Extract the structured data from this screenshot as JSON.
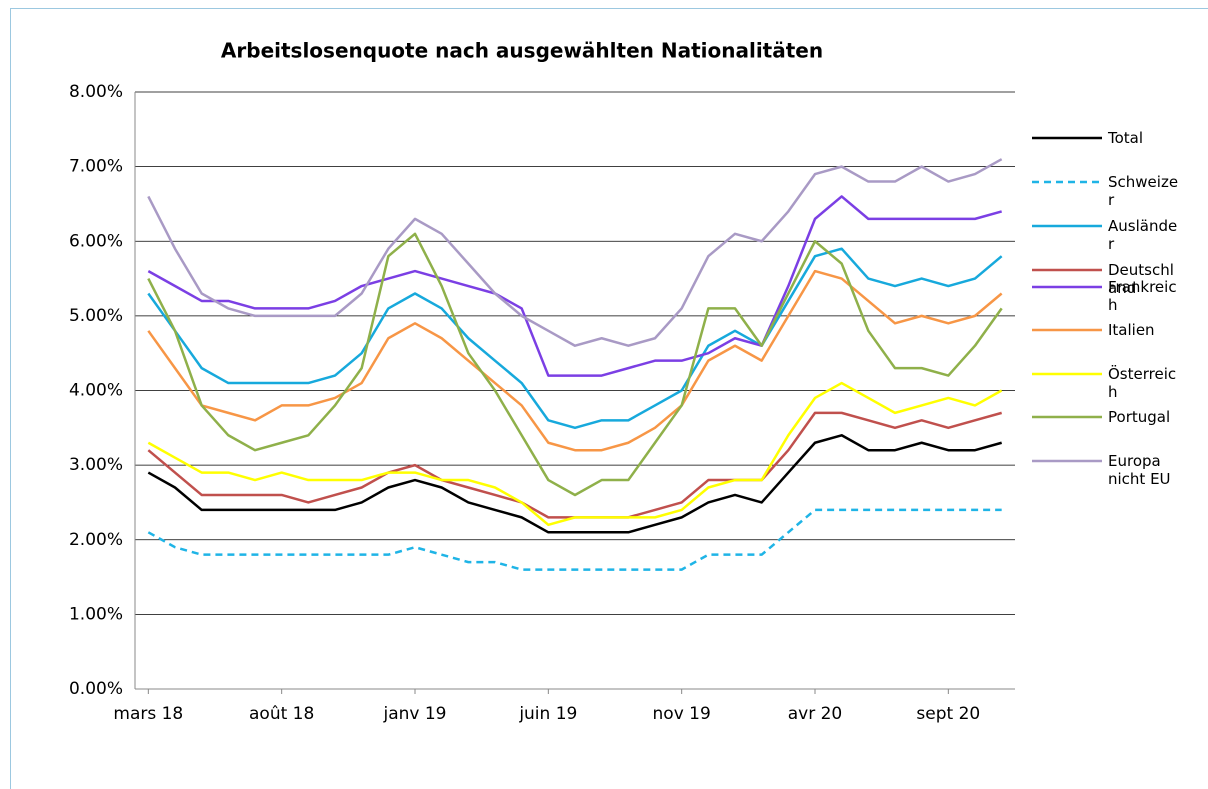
{
  "chart_data": {
    "type": "line",
    "title": "Arbeitslosenquote nach ausgewählten Nationalitäten",
    "categories": [
      "mars 18",
      null,
      null,
      null,
      null,
      "août 18",
      null,
      null,
      null,
      null,
      "janv 19",
      null,
      null,
      null,
      null,
      "juin 19",
      null,
      null,
      null,
      null,
      "nov 19",
      null,
      null,
      null,
      null,
      "avr 20",
      null,
      null,
      null,
      null,
      "sept 20",
      null,
      null
    ],
    "ylim": [
      0,
      8
    ],
    "yticks": [
      {
        "value": 0,
        "label": "0.00%"
      },
      {
        "value": 1,
        "label": "1.00%"
      },
      {
        "value": 2,
        "label": "2.00%"
      },
      {
        "value": 3,
        "label": "3.00%"
      },
      {
        "value": 4,
        "label": "4.00%"
      },
      {
        "value": 5,
        "label": "5.00%"
      },
      {
        "value": 6,
        "label": "6.00%"
      },
      {
        "value": 7,
        "label": "7.00%"
      },
      {
        "value": 8,
        "label": "8.00%"
      }
    ],
    "grid": true,
    "legend": "right",
    "series": [
      {
        "name": "Total",
        "color": "#000000",
        "values": [
          2.9,
          2.7,
          2.4,
          2.4,
          2.4,
          2.4,
          2.4,
          2.4,
          2.5,
          2.7,
          2.8,
          2.7,
          2.5,
          2.4,
          2.3,
          2.1,
          2.1,
          2.1,
          2.1,
          2.2,
          2.3,
          2.5,
          2.6,
          2.5,
          2.9,
          3.3,
          3.4,
          3.2,
          3.2,
          3.3,
          3.2,
          3.2,
          3.3
        ]
      },
      {
        "name": "Schweizer",
        "color": "#1fb4e6",
        "style": "dashed",
        "values": [
          2.1,
          1.9,
          1.8,
          1.8,
          1.8,
          1.8,
          1.8,
          1.8,
          1.8,
          1.8,
          1.9,
          1.8,
          1.7,
          1.7,
          1.6,
          1.6,
          1.6,
          1.6,
          1.6,
          1.6,
          1.6,
          1.8,
          1.8,
          1.8,
          2.1,
          2.4,
          2.4,
          2.4,
          2.4,
          2.4,
          2.4,
          2.4,
          2.4
        ]
      },
      {
        "name": "Ausländer",
        "color": "#17a9dc",
        "values": [
          5.3,
          4.8,
          4.3,
          4.1,
          4.1,
          4.1,
          4.1,
          4.2,
          4.5,
          5.1,
          5.3,
          5.1,
          4.7,
          4.4,
          4.1,
          3.6,
          3.5,
          3.6,
          3.6,
          3.8,
          4.0,
          4.6,
          4.8,
          4.6,
          5.2,
          5.8,
          5.9,
          5.5,
          5.4,
          5.5,
          5.4,
          5.5,
          5.8
        ]
      },
      {
        "name": "Deutschland",
        "color": "#c0504d",
        "values": [
          3.2,
          2.9,
          2.6,
          2.6,
          2.6,
          2.6,
          2.5,
          2.6,
          2.7,
          2.9,
          3.0,
          2.8,
          2.7,
          2.6,
          2.5,
          2.3,
          2.3,
          2.3,
          2.3,
          2.4,
          2.5,
          2.8,
          2.8,
          2.8,
          3.2,
          3.7,
          3.7,
          3.6,
          3.5,
          3.6,
          3.5,
          3.6,
          3.7
        ]
      },
      {
        "name": "Frankreich",
        "color": "#7b3fe4",
        "values": [
          5.6,
          5.4,
          5.2,
          5.2,
          5.1,
          5.1,
          5.1,
          5.2,
          5.4,
          5.5,
          5.6,
          5.5,
          5.4,
          5.3,
          5.1,
          4.2,
          4.2,
          4.2,
          4.3,
          4.4,
          4.4,
          4.5,
          4.7,
          4.6,
          5.4,
          6.3,
          6.6,
          6.3,
          6.3,
          6.3,
          6.3,
          6.3,
          6.4
        ]
      },
      {
        "name": "Italien",
        "color": "#f79646",
        "values": [
          4.8,
          4.3,
          3.8,
          3.7,
          3.6,
          3.8,
          3.8,
          3.9,
          4.1,
          4.7,
          4.9,
          4.7,
          4.4,
          4.1,
          3.8,
          3.3,
          3.2,
          3.2,
          3.3,
          3.5,
          3.8,
          4.4,
          4.6,
          4.4,
          5.0,
          5.6,
          5.5,
          5.2,
          4.9,
          5.0,
          4.9,
          5.0,
          5.3
        ]
      },
      {
        "name": "Österreich",
        "color": "#ffff00",
        "values": [
          3.3,
          3.1,
          2.9,
          2.9,
          2.8,
          2.9,
          2.8,
          2.8,
          2.8,
          2.9,
          2.9,
          2.8,
          2.8,
          2.7,
          2.5,
          2.2,
          2.3,
          2.3,
          2.3,
          2.3,
          2.4,
          2.7,
          2.8,
          2.8,
          3.4,
          3.9,
          4.1,
          3.9,
          3.7,
          3.8,
          3.9,
          3.8,
          4.0
        ]
      },
      {
        "name": "Portugal",
        "color": "#8fb04a",
        "values": [
          5.5,
          4.8,
          3.8,
          3.4,
          3.2,
          3.3,
          3.4,
          3.8,
          4.3,
          5.8,
          6.1,
          5.4,
          4.5,
          4.0,
          3.4,
          2.8,
          2.6,
          2.8,
          2.8,
          3.3,
          3.8,
          5.1,
          5.1,
          4.6,
          5.3,
          6.0,
          5.7,
          4.8,
          4.3,
          4.3,
          4.2,
          4.6,
          5.1
        ]
      },
      {
        "name": "Europa nicht EU",
        "color": "#a99ac5",
        "values": [
          6.6,
          5.9,
          5.3,
          5.1,
          5.0,
          5.0,
          5.0,
          5.0,
          5.3,
          5.9,
          6.3,
          6.1,
          5.7,
          5.3,
          5.0,
          4.8,
          4.6,
          4.7,
          4.6,
          4.7,
          5.1,
          5.8,
          6.1,
          6.0,
          6.4,
          6.9,
          7.0,
          6.8,
          6.8,
          7.0,
          6.8,
          6.9,
          7.1
        ]
      }
    ]
  }
}
